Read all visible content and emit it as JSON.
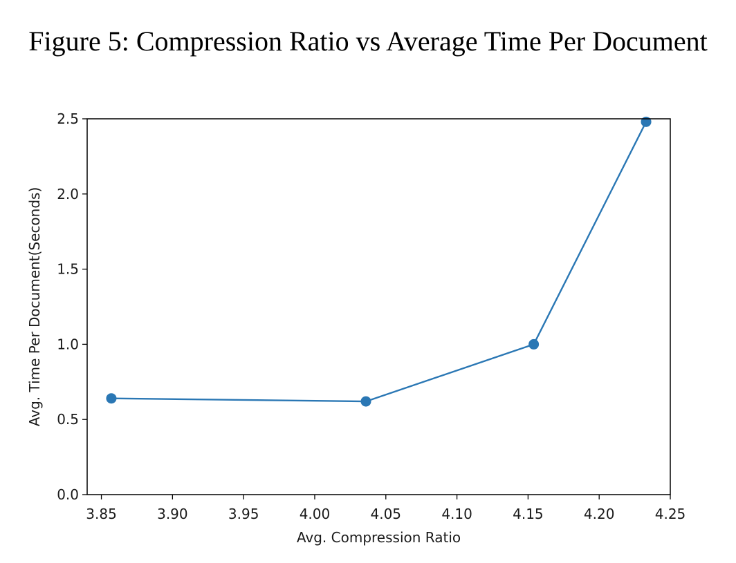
{
  "figure": {
    "title": "Figure 5: Compression Ratio vs Average Time Per Document"
  },
  "chart_data": {
    "type": "line",
    "title": "",
    "xlabel": "Avg. Compression Ratio",
    "ylabel": "Avg. Time Per Document(Seconds)",
    "xlim": [
      3.84,
      4.25
    ],
    "ylim": [
      0.0,
      2.5
    ],
    "xticks": [
      3.85,
      3.9,
      3.95,
      4.0,
      4.05,
      4.1,
      4.15,
      4.2,
      4.25
    ],
    "xtick_labels": [
      "3.85",
      "3.90",
      "3.95",
      "4.00",
      "4.05",
      "4.10",
      "4.15",
      "4.20",
      "4.25"
    ],
    "yticks": [
      0.0,
      0.5,
      1.0,
      1.5,
      2.0,
      2.5
    ],
    "ytick_labels": [
      "0.0",
      "0.5",
      "1.0",
      "1.5",
      "2.0",
      "2.5"
    ],
    "grid": false,
    "series": [
      {
        "color": "#2a77b4",
        "marker": "circle",
        "x": [
          3.857,
          4.036,
          4.154,
          4.233
        ],
        "y": [
          0.64,
          0.62,
          1.0,
          2.48
        ]
      }
    ]
  }
}
